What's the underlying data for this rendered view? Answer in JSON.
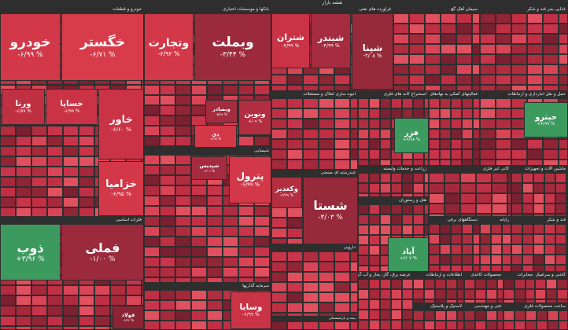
{
  "title": "نقشه بازار",
  "sectors": [
    {
      "name": "خودرو و قطعات",
      "tiles": [
        {
          "name": "خگستر",
          "change": "-۶/۷۱ %",
          "color": "#d83c4b"
        },
        {
          "name": "خودرو",
          "change": "-۶/۹۹ %",
          "color": "#d23848"
        },
        {
          "name": "خساپا",
          "change": "-۶/۹۹ %",
          "color": "#c93345"
        },
        {
          "name": "ورنا",
          "change": "-۶/۸۹ %",
          "color": "#c03043"
        },
        {
          "name": "خاور",
          "change": "-۶/۶۰ %",
          "color": "#c93345"
        },
        {
          "name": "خزامیا",
          "change": "-۶/۹۵ %",
          "color": "#d23848"
        }
      ]
    },
    {
      "name": "فلزات اساسی",
      "tiles": [
        {
          "name": "فملی",
          "change": "-۱/۰۰ %",
          "color": "#9a2a3c"
        },
        {
          "name": "ذوب",
          "change": "+۳/۹۶ %",
          "color": "#3c9a5e"
        },
        {
          "name": "فولاد",
          "change": "-۱/۴۶ %",
          "color": "#8a2435"
        }
      ]
    },
    {
      "name": "بانکها و موسسات اعتباری",
      "tiles": [
        {
          "name": "وبملت",
          "change": "-۳/۴۴ %",
          "color": "#9b2a3c"
        },
        {
          "name": "وتجارت",
          "change": "-۶/۹۲ %",
          "color": "#d23848"
        },
        {
          "name": "ونوین",
          "change": "-۶/۰۷ %",
          "color": "#b22e40"
        },
        {
          "name": "وبصادر",
          "change": "-۵/۹۷ %",
          "color": "#a52b3e"
        },
        {
          "name": "دی",
          "change": "-۶/۹۸ %",
          "color": "#d23848"
        }
      ]
    },
    {
      "name": "شیمیایی",
      "tiles": [
        {
          "name": "پترول",
          "change": "-۶/۹۹ %",
          "color": "#d23848"
        },
        {
          "name": "شپدیس",
          "change": "-۴/۰۶ %",
          "color": "#a52b3e"
        }
      ]
    },
    {
      "name": "سرمایه گذاریها",
      "tiles": [
        {
          "name": "وسایا",
          "change": "-۶/۹۹ %",
          "color": "#c93345"
        }
      ]
    },
    {
      "name": "فراورده های نفتی",
      "tiles": [
        {
          "name": "شپنا",
          "change": "-۳/۰۸ %",
          "color": "#962a3b"
        },
        {
          "name": "شبندر",
          "change": "-۴/۹۹ %",
          "color": "#a52b3e"
        },
        {
          "name": "شتران",
          "change": "-۴/۹۹ %",
          "color": "#c93345"
        }
      ]
    },
    {
      "name": "سیمان آهک گچ",
      "tiles": []
    },
    {
      "name": "غذایی بجز قند و شکر",
      "tiles": []
    },
    {
      "name": "انبوه سازی املاک و مستغلات",
      "tiles": []
    },
    {
      "name": "استخراج کانه های فلزی",
      "tiles": [
        {
          "name": "فزر",
          "change": "+۴/۹۸ %",
          "color": "#3c9a5e"
        }
      ]
    },
    {
      "name": "فعالیتهای کمکی به نهادهای مالی واسط",
      "tiles": []
    },
    {
      "name": "حمل و نقل انبارداری و ارتباطات",
      "tiles": [
        {
          "name": "حپترو",
          "change": "+۴/۹۹ %",
          "color": "#3c9a5e"
        }
      ]
    },
    {
      "name": "چندرشته ای صنعتی",
      "tiles": [
        {
          "name": "شستا",
          "change": "-۳/۰۳ %",
          "color": "#962a3b"
        },
        {
          "name": "وکغدیر",
          "change": "-۴/۹۹ %",
          "color": "#b22e40"
        }
      ]
    },
    {
      "name": "زراعت و خدمات وابسته",
      "tiles": []
    },
    {
      "name": "کانی غیر فلزی",
      "tiles": []
    },
    {
      "name": "ماشین آلات و تجهیزات",
      "tiles": []
    },
    {
      "name": "هتل و رستوران",
      "tiles": [
        {
          "name": "آپاد",
          "change": "+۲/۰۷ %",
          "color": "#3c9a5e"
        }
      ]
    },
    {
      "name": "دستگاههای برقی",
      "tiles": []
    },
    {
      "name": "رایانه",
      "tiles": []
    },
    {
      "name": "قند و شکر",
      "tiles": []
    },
    {
      "name": "دارویی",
      "tiles": []
    },
    {
      "name": "بیمه و بازنشستگی",
      "tiles": []
    },
    {
      "name": "عرضه برق، گاز، بخار و آب گرم",
      "tiles": []
    },
    {
      "name": "اطلاعات و ارتباطات",
      "tiles": []
    },
    {
      "name": "محصولات کاغذی",
      "tiles": []
    },
    {
      "name": "مخابرات",
      "tiles": []
    },
    {
      "name": "کاشی و سرامیک",
      "tiles": []
    },
    {
      "name": "لاستیک و پلاستیک",
      "tiles": []
    },
    {
      "name": "فنی و مهندسی",
      "tiles": []
    },
    {
      "name": "ساخت محصولات فلزی",
      "tiles": []
    }
  ]
}
